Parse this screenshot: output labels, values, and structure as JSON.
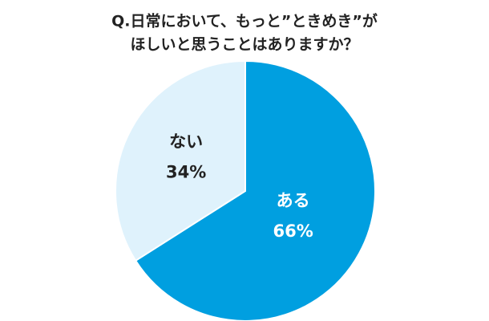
{
  "chart_data": {
    "type": "pie",
    "title": [
      "Q.日常において、もっと”ときめき”が",
      "ほしいと思うことはありますか？"
    ],
    "categories": [
      "ある",
      "ない"
    ],
    "values": [
      66,
      34
    ],
    "value_labels": [
      "66%",
      "34%"
    ],
    "colors": [
      "#009fe0",
      "#dff2fc"
    ],
    "label_colors": [
      "#ffffff",
      "#222222"
    ]
  }
}
